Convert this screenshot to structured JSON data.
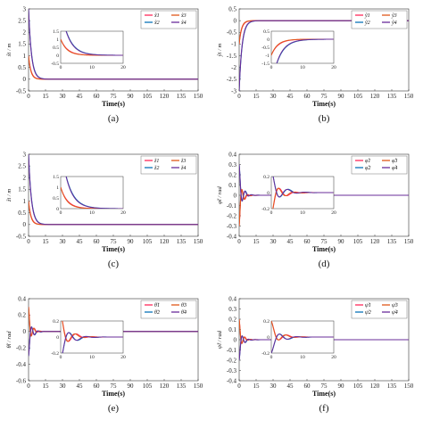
{
  "colors": {
    "s1": "#ff2a5a",
    "s2": "#0a72b8",
    "s3": "#e0581a",
    "s4": "#6a2c9a"
  },
  "chart_data": [
    {
      "type": "line",
      "label": "(a)",
      "ylabel": "x̃i / m",
      "xlabel": "Time(s)",
      "xlim": [
        0,
        150
      ],
      "ylim": [
        -0.5,
        3
      ],
      "xticks": [
        0,
        15,
        30,
        45,
        60,
        75,
        90,
        105,
        120,
        135,
        150
      ],
      "yticks": [
        -0.5,
        0,
        0.5,
        1,
        1.5,
        2,
        2.5,
        3
      ],
      "series": [
        {
          "name": "x̃1",
          "start": 1.0,
          "tau": 2.2,
          "osc": 0,
          "freq": 0
        },
        {
          "name": "x̃2",
          "start": 3.0,
          "tau": 2.6,
          "osc": 0,
          "freq": 0
        },
        {
          "name": "x̃3",
          "start": 1.0,
          "tau": 2.0,
          "osc": 0,
          "freq": 0
        },
        {
          "name": "x̃4",
          "start": 3.0,
          "tau": 2.5,
          "osc": 0,
          "freq": 0
        }
      ],
      "inset": {
        "xlim": [
          0,
          20
        ],
        "ylim": [
          -0.5,
          1.5
        ],
        "xticks": [
          0,
          10,
          20
        ],
        "yticks": [
          -0.5,
          0,
          0.5,
          1,
          1.5
        ]
      },
      "legend": "top-right"
    },
    {
      "type": "line",
      "label": "(b)",
      "ylabel": "ỹi / m",
      "xlabel": "Time(s)",
      "xlim": [
        0,
        150
      ],
      "ylim": [
        -3,
        0.5
      ],
      "xticks": [
        0,
        15,
        30,
        45,
        60,
        75,
        90,
        105,
        120,
        135,
        150
      ],
      "yticks": [
        -3,
        -2.5,
        -2,
        -1.5,
        -1,
        -0.5,
        0,
        0.5
      ],
      "series": [
        {
          "name": "ỹ1",
          "start": -1.0,
          "tau": 2.2,
          "osc": 0,
          "freq": 0
        },
        {
          "name": "ỹ2",
          "start": -3.0,
          "tau": 2.6,
          "osc": 0,
          "freq": 0
        },
        {
          "name": "ỹ3",
          "start": -1.0,
          "tau": 2.0,
          "osc": 0,
          "freq": 0
        },
        {
          "name": "ỹ4",
          "start": -3.0,
          "tau": 2.5,
          "osc": 0,
          "freq": 0
        }
      ],
      "inset": {
        "xlim": [
          0,
          20
        ],
        "ylim": [
          -1.5,
          0.5
        ],
        "xticks": [
          0,
          10,
          20
        ],
        "yticks": [
          -1.5,
          -1,
          -0.5,
          0,
          0.5
        ]
      },
      "legend": "top-right"
    },
    {
      "type": "line",
      "label": "(c)",
      "ylabel": "z̃i / m",
      "xlabel": "Time(s)",
      "xlim": [
        0,
        150
      ],
      "ylim": [
        -0.5,
        3
      ],
      "xticks": [
        0,
        15,
        30,
        45,
        60,
        75,
        90,
        105,
        120,
        135,
        150
      ],
      "yticks": [
        -0.5,
        0,
        0.5,
        1,
        1.5,
        2,
        2.5,
        3
      ],
      "series": [
        {
          "name": "z̃1",
          "start": 1.0,
          "tau": 2.2,
          "osc": 0,
          "freq": 0
        },
        {
          "name": "z̃2",
          "start": 3.0,
          "tau": 2.6,
          "osc": 0,
          "freq": 0
        },
        {
          "name": "z̃3",
          "start": 1.0,
          "tau": 2.0,
          "osc": 0,
          "freq": 0
        },
        {
          "name": "z̃4",
          "start": 3.0,
          "tau": 2.5,
          "osc": 0,
          "freq": 0
        }
      ],
      "inset": {
        "xlim": [
          0,
          20
        ],
        "ylim": [
          0,
          1.5
        ],
        "xticks": [
          0,
          10,
          20
        ],
        "yticks": [
          0,
          0.5,
          1,
          1.5
        ]
      },
      "legend": "top-right"
    },
    {
      "type": "line",
      "label": "(d)",
      "ylabel": "φ̃i / rad",
      "xlabel": "Time(s)",
      "xlim": [
        0,
        150
      ],
      "ylim": [
        -0.4,
        0.4
      ],
      "xticks": [
        0,
        15,
        30,
        45,
        60,
        75,
        90,
        105,
        120,
        135,
        150
      ],
      "yticks": [
        -0.4,
        -0.3,
        -0.2,
        -0.1,
        0,
        0.1,
        0.2,
        0.3,
        0.4
      ],
      "series": [
        {
          "name": "φ̃1",
          "start": -0.3,
          "tau": 2.5,
          "osc": 0.8,
          "freq": 1.2
        },
        {
          "name": "φ̃2",
          "start": 0.3,
          "tau": 2.8,
          "osc": 0.8,
          "freq": 1.1
        },
        {
          "name": "φ̃3",
          "start": -0.3,
          "tau": 2.3,
          "osc": 0.8,
          "freq": 1.3
        },
        {
          "name": "φ̃4",
          "start": 0.3,
          "tau": 2.6,
          "osc": 0.8,
          "freq": 1.15
        }
      ],
      "inset": {
        "xlim": [
          0,
          20
        ],
        "ylim": [
          -0.2,
          0.2
        ],
        "xticks": [
          0,
          10,
          20
        ],
        "yticks": [
          -0.2,
          0,
          0.2
        ]
      },
      "legend": "top-right"
    },
    {
      "type": "line",
      "label": "(e)",
      "ylabel": "θ̃i / rad",
      "xlabel": "Time(s)",
      "xlim": [
        0,
        150
      ],
      "ylim": [
        -0.6,
        0.4
      ],
      "xticks": [
        0,
        15,
        30,
        45,
        60,
        75,
        90,
        105,
        120,
        135,
        150
      ],
      "yticks": [
        -0.6,
        -0.4,
        -0.2,
        0,
        0.2,
        0.4
      ],
      "series": [
        {
          "name": "θ̃1",
          "start": 0.3,
          "tau": 2.5,
          "osc": 0.8,
          "freq": 1.2
        },
        {
          "name": "θ̃2",
          "start": -0.3,
          "tau": 2.8,
          "osc": 0.8,
          "freq": 1.1
        },
        {
          "name": "θ̃3",
          "start": 0.3,
          "tau": 2.3,
          "osc": 0.8,
          "freq": 1.3
        },
        {
          "name": "θ̃4",
          "start": -0.3,
          "tau": 2.6,
          "osc": 0.8,
          "freq": 1.15
        }
      ],
      "inset": {
        "xlim": [
          0,
          20
        ],
        "ylim": [
          -0.2,
          0.2
        ],
        "xticks": [
          0,
          10,
          20
        ],
        "yticks": [
          -0.2,
          0,
          0.2
        ]
      },
      "legend": "top-right"
    },
    {
      "type": "line",
      "label": "(f)",
      "ylabel": "ψ̃i / rad",
      "xlabel": "Time(s)",
      "xlim": [
        0,
        150
      ],
      "ylim": [
        -0.4,
        0.4
      ],
      "xticks": [
        0,
        15,
        30,
        45,
        60,
        75,
        90,
        105,
        120,
        135,
        150
      ],
      "yticks": [
        -0.4,
        -0.3,
        -0.2,
        -0.1,
        0,
        0.1,
        0.2,
        0.3,
        0.4
      ],
      "series": [
        {
          "name": "ψ̃1",
          "start": 0.2,
          "tau": 2.5,
          "osc": 0.8,
          "freq": 1.2
        },
        {
          "name": "ψ̃2",
          "start": -0.2,
          "tau": 2.8,
          "osc": 0.8,
          "freq": 1.1
        },
        {
          "name": "ψ̃3",
          "start": 0.2,
          "tau": 2.3,
          "osc": 0.8,
          "freq": 1.3
        },
        {
          "name": "ψ̃4",
          "start": -0.2,
          "tau": 2.6,
          "osc": 0.8,
          "freq": 1.15
        }
      ],
      "inset": {
        "xlim": [
          0,
          20
        ],
        "ylim": [
          -0.2,
          0.2
        ],
        "xticks": [
          0,
          10,
          20
        ],
        "yticks": [
          -0.2,
          0,
          0.2
        ]
      },
      "legend": "top-right"
    }
  ]
}
